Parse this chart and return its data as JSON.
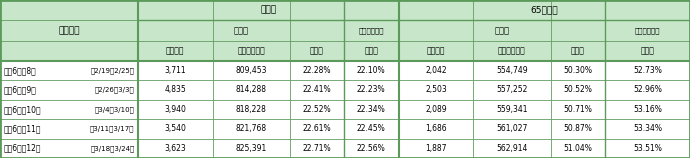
{
  "header_bg": "#c8e6c9",
  "white": "#ffffff",
  "border_color": "#5b9a5b",
  "fig_width": 6.9,
  "fig_height": 1.58,
  "dpi": 100,
  "col_starts": [
    0.0,
    0.2,
    0.308,
    0.42,
    0.498,
    0.578,
    0.686,
    0.798,
    0.877
  ],
  "col_ends": [
    0.2,
    0.308,
    0.42,
    0.498,
    0.578,
    0.686,
    0.798,
    0.877,
    1.0
  ],
  "n_header_rows": 3,
  "n_data_rows": 5,
  "header_row0_labels": [
    "全年代",
    "65歳以上"
  ],
  "header_row1_labels": [
    "静岡県",
    "（参考）全国",
    "静岡県",
    "（参考）全国"
  ],
  "header_row2_labels": [
    "接種者数",
    "接種者数累計",
    "接種率",
    "接種率",
    "接種者数",
    "接種者数累計",
    "接種率",
    "接種率"
  ],
  "col0_label": "集計期間",
  "rows": [
    [
      "令和6年第8週",
      "（2/19～2/25）",
      "3,711",
      "809,453",
      "22.28%",
      "22.10%",
      "2,042",
      "554,749",
      "50.30%",
      "52.73%"
    ],
    [
      "令和6年第9週",
      "（2/26～3/3）",
      "4,835",
      "814,288",
      "22.41%",
      "22.23%",
      "2,503",
      "557,252",
      "50.52%",
      "52.96%"
    ],
    [
      "令和6年第10週",
      "（3/4～3/10）",
      "3,940",
      "818,228",
      "22.52%",
      "22.34%",
      "2,089",
      "559,341",
      "50.71%",
      "53.16%"
    ],
    [
      "令和6年第11週",
      "（3/11～3/17）",
      "3,540",
      "821,768",
      "22.61%",
      "22.45%",
      "1,686",
      "561,027",
      "50.87%",
      "53.34%"
    ],
    [
      "令和6年第12週",
      "（3/18～3/24）",
      "3,623",
      "825,391",
      "22.71%",
      "22.56%",
      "1,887",
      "562,914",
      "51.04%",
      "53.51%"
    ]
  ]
}
